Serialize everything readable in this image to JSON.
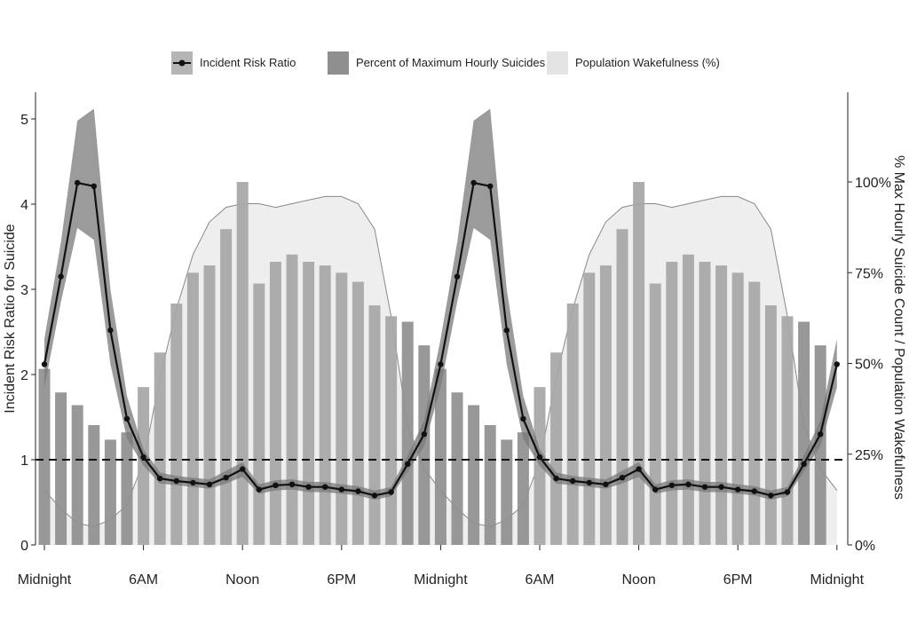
{
  "chart_data": {
    "type": "bar",
    "xlabels": [
      "Midnight",
      "6AM",
      "Noon",
      "6PM",
      "Midnight",
      "6AM",
      "Noon",
      "6PM",
      "Midnight"
    ],
    "ylabel": "Incident Risk Ratio for Suicide",
    "y2label": "% Max Hourly Suicide Count / Population Wakefulness",
    "ylim": [
      0,
      5
    ],
    "y2lim": [
      0,
      100
    ],
    "yticks": [
      "0",
      "1",
      "2",
      "3",
      "4",
      "5"
    ],
    "y2ticks": [
      "0%",
      "25%",
      "50%",
      "75%",
      "100%"
    ],
    "reference_line": 1,
    "legend": {
      "position": "top",
      "entries": [
        "Incident Risk Ratio",
        "Percent of Maximum Hourly Suicides",
        "Population Wakefulness (%)"
      ]
    },
    "colors": {
      "risk_ratio": "#111111",
      "ci_band": "#7a7a7a",
      "bars": "#a6a6a6",
      "bars_dark": "#8f8f8f",
      "wakefulness": "#eeeeee",
      "wakefulness_line": "#888888"
    },
    "series": [
      {
        "name": "Percent of Maximum Hourly Suicides",
        "values": [
          48.5,
          42,
          38.5,
          33,
          29,
          31,
          43.5,
          53,
          66.5,
          75,
          77,
          87,
          100,
          72,
          78,
          80,
          78,
          77,
          75,
          72.5,
          66,
          63,
          61.5,
          55,
          48.5,
          42,
          38.5,
          33,
          29,
          31,
          43.5,
          53,
          66.5,
          75,
          77,
          87,
          100,
          72,
          78,
          80,
          78,
          77,
          75,
          72.5,
          66,
          63,
          61.5,
          55
        ]
      },
      {
        "name": "Incident Risk Ratio",
        "values": [
          2.12,
          3.15,
          4.25,
          4.21,
          2.52,
          1.48,
          1.03,
          0.78,
          0.75,
          0.73,
          0.71,
          0.79,
          0.89,
          0.65,
          0.7,
          0.71,
          0.68,
          0.68,
          0.65,
          0.63,
          0.58,
          0.62,
          0.95,
          1.3,
          2.12,
          3.15,
          4.25,
          4.21,
          2.52,
          1.48,
          1.03,
          0.78,
          0.75,
          0.73,
          0.71,
          0.79,
          0.89,
          0.65,
          0.7,
          0.71,
          0.68,
          0.68,
          0.65,
          0.63,
          0.58,
          0.62,
          0.95,
          1.3,
          2.12
        ],
        "ci_lower": [
          1.85,
          2.85,
          3.72,
          3.58,
          2.12,
          1.25,
          0.93,
          0.72,
          0.7,
          0.68,
          0.66,
          0.72,
          0.8,
          0.6,
          0.64,
          0.65,
          0.62,
          0.62,
          0.6,
          0.58,
          0.53,
          0.57,
          0.86,
          1.16,
          1.85,
          2.85,
          3.72,
          3.58,
          2.12,
          1.25,
          0.93,
          0.72,
          0.7,
          0.68,
          0.66,
          0.72,
          0.8,
          0.6,
          0.64,
          0.65,
          0.62,
          0.62,
          0.6,
          0.58,
          0.53,
          0.57,
          0.86,
          1.16,
          1.85
        ],
        "ci_upper": [
          2.42,
          3.55,
          4.98,
          5.12,
          3.0,
          1.75,
          1.12,
          0.85,
          0.81,
          0.79,
          0.77,
          0.87,
          0.97,
          0.71,
          0.76,
          0.77,
          0.74,
          0.74,
          0.71,
          0.69,
          0.64,
          0.68,
          1.05,
          1.46,
          2.42,
          3.55,
          4.98,
          5.12,
          3.0,
          1.75,
          1.12,
          0.85,
          0.81,
          0.79,
          0.77,
          0.87,
          0.97,
          0.71,
          0.76,
          0.77,
          0.74,
          0.74,
          0.71,
          0.69,
          0.64,
          0.68,
          1.05,
          1.46,
          2.42
        ]
      },
      {
        "name": "Population Wakefulness (%)",
        "values": [
          15,
          10,
          6,
          5,
          7,
          11,
          23,
          46,
          65,
          80,
          89,
          93,
          94,
          94,
          93,
          94,
          95,
          96,
          96,
          94,
          87,
          63,
          33,
          21,
          15,
          10,
          6,
          5,
          7,
          11,
          23,
          46,
          65,
          80,
          89,
          93,
          94,
          94,
          93,
          94,
          95,
          96,
          96,
          94,
          87,
          63,
          33,
          21,
          15
        ]
      }
    ]
  }
}
